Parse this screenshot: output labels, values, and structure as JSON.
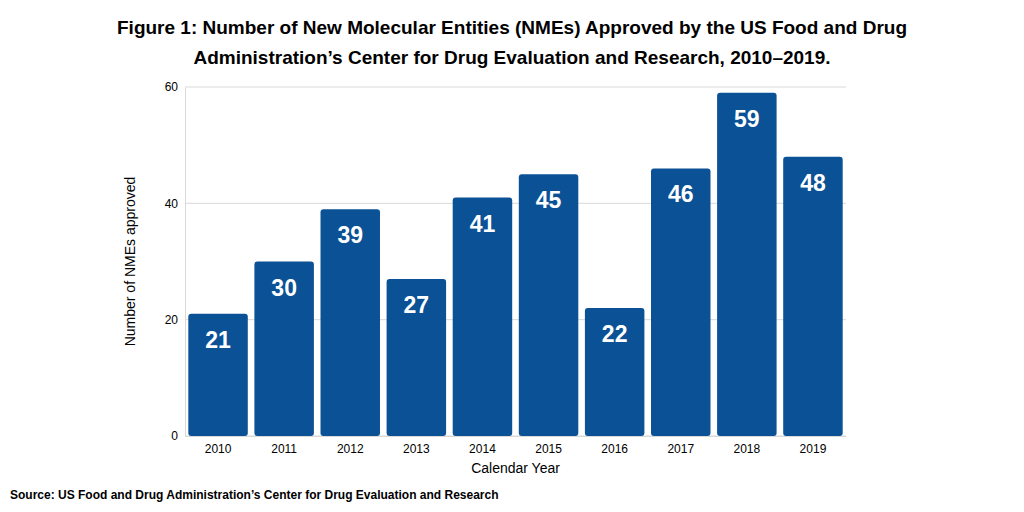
{
  "chart_data": {
    "type": "bar",
    "title": "Figure 1: Number of New Molecular Entities (NMEs) Approved by the US Food and Drug Administration’s Center for Drug Evaluation and Research, 2010–2019.",
    "x_label": "Calendar Year",
    "y_label": "Number of NMEs approved",
    "annotations": [
      "Source: US Food and Drug Administration’s Center for Drug Evaluation and Research"
    ],
    "categories": [
      "2010",
      "2011",
      "2012",
      "2013",
      "2014",
      "2015",
      "2016",
      "2017",
      "2018",
      "2019"
    ],
    "values": [
      21,
      30,
      39,
      27,
      41,
      45,
      22,
      46,
      59,
      48
    ],
    "color": "#0a5196",
    "ylim": [
      0,
      60
    ],
    "yticks": [
      0,
      20,
      40,
      60
    ],
    "grid": true,
    "data_labels": true
  }
}
